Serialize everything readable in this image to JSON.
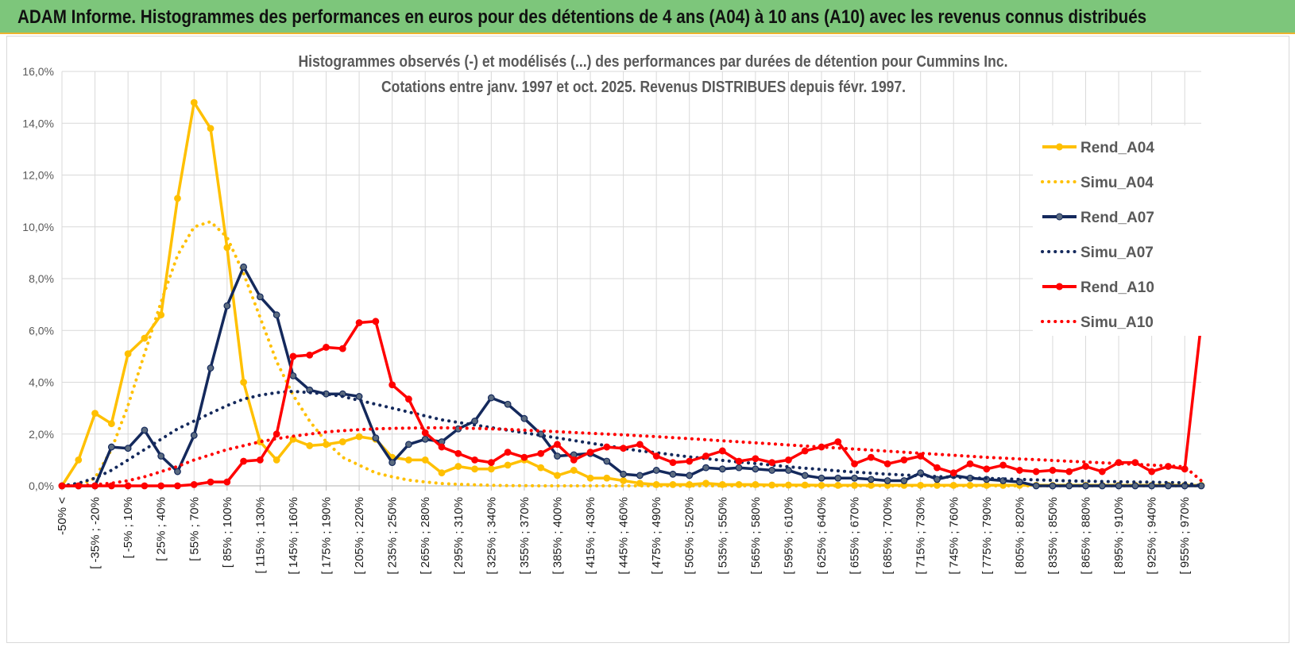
{
  "header": {
    "title": "ADAM Informe. Histogrammes des performances en euros pour des détentions de 4 ans (A04) à 10 ans (A10) avec les revenus connus distribués"
  },
  "chart_data": {
    "type": "line",
    "title": "Histogrammes observés (-) et modélisés (...) des performances par durées de détention pour Cummins Inc.",
    "subtitle": "Cotations entre janv. 1997 et oct. 2025. Revenus DISTRIBUES depuis févr. 1997.",
    "xlabel": "",
    "ylabel": "",
    "ylim": [
      0,
      16
    ],
    "y_unit": "%",
    "yticks": [
      "0,0%",
      "2,0%",
      "4,0%",
      "6,0%",
      "8,0%",
      "10,0%",
      "12,0%",
      "14,0%",
      "16,0%"
    ],
    "grid": true,
    "legend_position": "right",
    "x_labels": [
      "-50% <",
      "[ -35% ; -20%",
      "[ -5% ; 10%",
      "[ 25% ; 40%",
      "[ 55% ; 70%",
      "[ 85% ; 100%",
      "[ 115% ; 130%",
      "[ 145% ; 160%",
      "[ 175% ; 190%",
      "[ 205% ; 220%",
      "[ 235% ; 250%",
      "[ 265% ; 280%",
      "[ 295% ; 310%",
      "[ 325% ; 340%",
      "[ 355% ; 370%",
      "[ 385% ; 400%",
      "[ 415% ; 430%",
      "[ 445% ; 460%",
      "[ 475% ; 490%",
      "[ 505% ; 520%",
      "[ 535% ; 550%",
      "[ 565% ; 580%",
      "[ 595% ; 610%",
      "[ 625% ; 640%",
      "[ 655% ; 670%",
      "[ 685% ; 700%",
      "[ 715% ; 730%",
      "[ 745% ; 760%",
      "[ 775% ; 790%",
      "[ 805% ; 820%",
      "[ 835% ; 850%",
      "[ 865% ; 880%",
      "[ 895% ; 910%",
      "[ 925% ; 940%",
      "[ 955% ; 970%"
    ],
    "x_label_every": 2,
    "series": [
      {
        "name": "Rend_A04",
        "color": "#ffc000",
        "style": "solid",
        "markers": true,
        "values": [
          0.0,
          1.0,
          2.8,
          2.4,
          5.1,
          5.7,
          6.6,
          11.1,
          14.8,
          13.8,
          9.2,
          4.0,
          1.7,
          1.0,
          1.8,
          1.55,
          1.6,
          1.7,
          1.9,
          1.8,
          1.1,
          1.0,
          1.0,
          0.5,
          0.75,
          0.65,
          0.65,
          0.8,
          1.0,
          0.7,
          0.4,
          0.6,
          0.3,
          0.3,
          0.2,
          0.1,
          0.05,
          0.05,
          0.05,
          0.1,
          0.05,
          0.05,
          0.05,
          0.03,
          0.03,
          0.03,
          0.02,
          0.02,
          0.02,
          0.02,
          0.02,
          0.02,
          0.02,
          0.02,
          0.02,
          0.02,
          0.02,
          0.02,
          0.02,
          0.02,
          0.02,
          0.02,
          0.02,
          0.02,
          0.02,
          0.02,
          0.02,
          0.02,
          0.02,
          0.02
        ]
      },
      {
        "name": "Simu_A04",
        "color": "#ffc000",
        "style": "dotted",
        "markers": false,
        "values": [
          0.0,
          0.0,
          0.3,
          1.4,
          3.1,
          5.1,
          7.1,
          8.9,
          10.0,
          10.2,
          9.6,
          8.2,
          6.5,
          4.8,
          3.5,
          2.5,
          1.7,
          1.1,
          0.8,
          0.5,
          0.35,
          0.22,
          0.15,
          0.09,
          0.06,
          0.04,
          0.02,
          0.01,
          0.01,
          0.0,
          0.0,
          0.0,
          0.0,
          0.0,
          0.0,
          0.0,
          0.0,
          0.0,
          0.0,
          0.0,
          0.0,
          0.0,
          0.0,
          0.0,
          0.0,
          0.0,
          0.0,
          0.0,
          0.0,
          0.0,
          0.0,
          0.0,
          0.0,
          0.0,
          0.0,
          0.0,
          0.0,
          0.0,
          0.0,
          0.0,
          0.0,
          0.0,
          0.0,
          0.0,
          0.0,
          0.0,
          0.0,
          0.0,
          0.0,
          0.0
        ]
      },
      {
        "name": "Rend_A07",
        "color": "#14295c",
        "style": "solid",
        "markers": true,
        "values": [
          0.0,
          0.0,
          0.0,
          1.5,
          1.45,
          2.15,
          1.15,
          0.55,
          1.95,
          4.55,
          6.95,
          8.45,
          7.3,
          6.6,
          4.25,
          3.7,
          3.55,
          3.55,
          3.45,
          1.85,
          0.9,
          1.6,
          1.8,
          1.7,
          2.2,
          2.5,
          3.4,
          3.15,
          2.6,
          2.0,
          1.15,
          1.2,
          1.25,
          0.95,
          0.45,
          0.4,
          0.6,
          0.45,
          0.4,
          0.7,
          0.65,
          0.7,
          0.65,
          0.6,
          0.6,
          0.4,
          0.3,
          0.3,
          0.3,
          0.25,
          0.2,
          0.2,
          0.5,
          0.25,
          0.4,
          0.3,
          0.25,
          0.2,
          0.15,
          0.0,
          0.0,
          0.0,
          0.0,
          0.0,
          0.0,
          0.0,
          0.0,
          0.0,
          0.0,
          0.0
        ]
      },
      {
        "name": "Simu_A07",
        "color": "#14295c",
        "style": "dotted",
        "markers": false,
        "values": [
          0.0,
          0.1,
          0.3,
          0.6,
          1.0,
          1.4,
          1.8,
          2.2,
          2.5,
          2.8,
          3.1,
          3.35,
          3.5,
          3.6,
          3.65,
          3.6,
          3.55,
          3.45,
          3.3,
          3.15,
          3.0,
          2.85,
          2.7,
          2.55,
          2.45,
          2.35,
          2.25,
          2.15,
          2.05,
          1.95,
          1.85,
          1.75,
          1.65,
          1.55,
          1.45,
          1.35,
          1.28,
          1.2,
          1.12,
          1.05,
          0.98,
          0.92,
          0.86,
          0.8,
          0.74,
          0.68,
          0.63,
          0.58,
          0.53,
          0.49,
          0.45,
          0.42,
          0.39,
          0.36,
          0.33,
          0.31,
          0.29,
          0.27,
          0.25,
          0.23,
          0.21,
          0.19,
          0.18,
          0.17,
          0.16,
          0.15,
          0.14,
          0.13,
          0.12,
          0.0
        ]
      },
      {
        "name": "Rend_A10",
        "color": "#ff0000",
        "style": "solid",
        "markers": true,
        "values": [
          0.0,
          0.0,
          0.0,
          0.0,
          0.0,
          0.0,
          0.0,
          0.0,
          0.05,
          0.15,
          0.15,
          0.95,
          1.0,
          2.0,
          5.0,
          5.05,
          5.35,
          5.3,
          6.3,
          6.35,
          3.9,
          3.35,
          2.05,
          1.5,
          1.25,
          1.0,
          0.9,
          1.3,
          1.1,
          1.25,
          1.6,
          1.0,
          1.3,
          1.5,
          1.45,
          1.6,
          1.15,
          0.9,
          0.95,
          1.15,
          1.35,
          0.95,
          1.05,
          0.9,
          1.0,
          1.35,
          1.5,
          1.7,
          0.85,
          1.1,
          0.85,
          1.0,
          1.15,
          0.7,
          0.5,
          0.85,
          0.65,
          0.8,
          0.6,
          0.55,
          0.6,
          0.55,
          0.75,
          0.55,
          0.9,
          0.9,
          0.55,
          0.75,
          0.65,
          6.3
        ]
      },
      {
        "name": "Simu_A10",
        "color": "#ff0000",
        "style": "dotted",
        "markers": false,
        "values": [
          0.0,
          0.0,
          0.05,
          0.1,
          0.2,
          0.35,
          0.55,
          0.75,
          1.0,
          1.2,
          1.4,
          1.55,
          1.7,
          1.82,
          1.92,
          2.0,
          2.08,
          2.13,
          2.17,
          2.2,
          2.22,
          2.23,
          2.24,
          2.24,
          2.23,
          2.22,
          2.2,
          2.18,
          2.15,
          2.12,
          2.09,
          2.06,
          2.03,
          2.0,
          1.97,
          1.93,
          1.9,
          1.86,
          1.82,
          1.78,
          1.74,
          1.7,
          1.66,
          1.62,
          1.58,
          1.54,
          1.5,
          1.46,
          1.42,
          1.38,
          1.34,
          1.3,
          1.26,
          1.22,
          1.18,
          1.14,
          1.1,
          1.07,
          1.04,
          1.01,
          0.98,
          0.95,
          0.92,
          0.89,
          0.86,
          0.83,
          0.8,
          0.77,
          0.74,
          0.2
        ]
      }
    ]
  }
}
